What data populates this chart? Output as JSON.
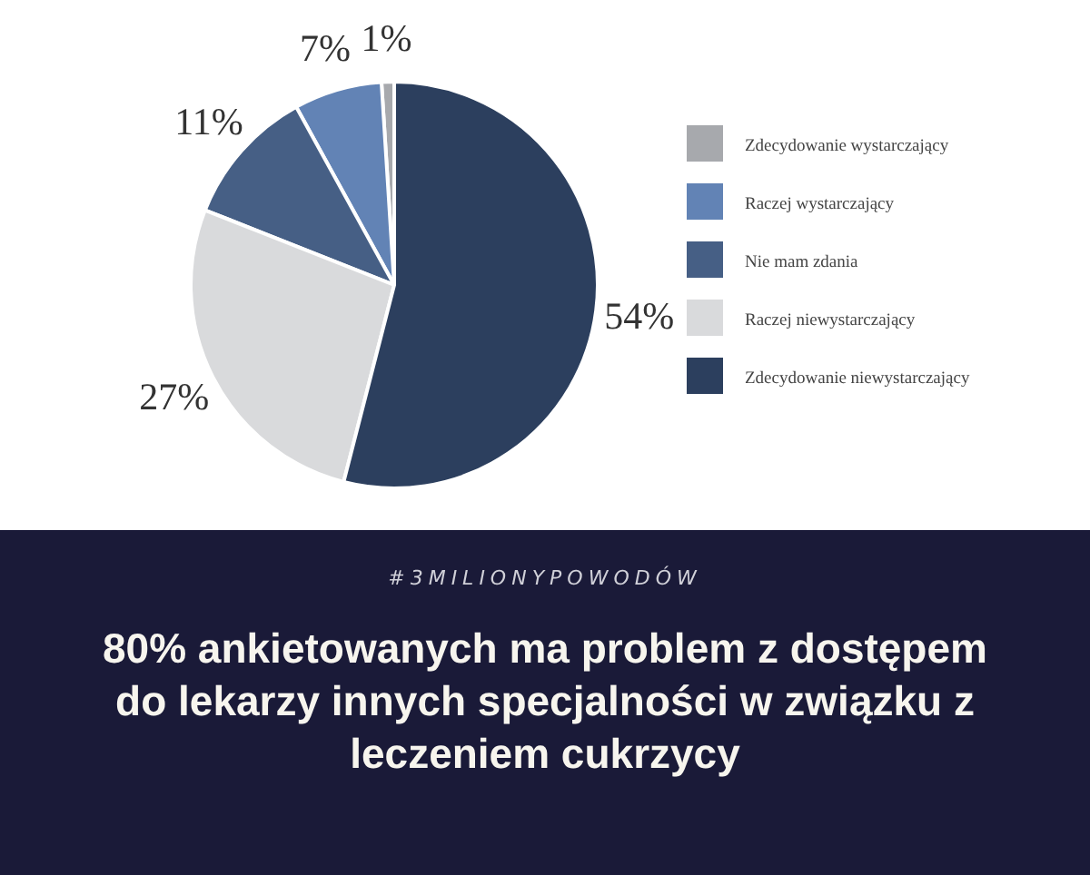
{
  "chart_data": {
    "type": "pie",
    "title": "80% ankietowanych ma problem z dostępem do lekarzy innych specjalności w związku z leczeniem cukrzycy",
    "subtitle": "#3MILIONYPOWODÓW",
    "categories": [
      "Zdecydowanie wystarczający",
      "Raczej wystarczający",
      "Nie mam zdania",
      "Raczej niewystarczający",
      "Zdecydowanie niewystarczający"
    ],
    "values": [
      1,
      7,
      11,
      27,
      54
    ],
    "value_labels": [
      "1%",
      "7%",
      "11%",
      "27%",
      "54%"
    ],
    "colors": [
      "#a7a9ad",
      "#6283b5",
      "#465f85",
      "#d9dadc",
      "#2c3f5e"
    ],
    "legend": "right"
  }
}
